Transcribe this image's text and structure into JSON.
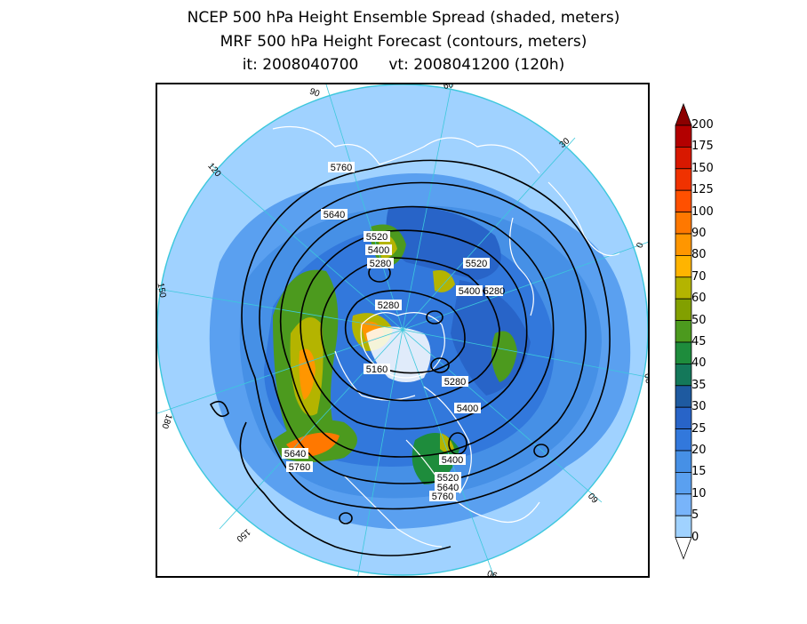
{
  "titles": {
    "line1": "NCEP 500 hPa Height Ensemble Spread (shaded, meters)",
    "line2": "MRF 500 hPa Height Forecast (contours, meters)",
    "init_time": "it: 2008040700",
    "valid_time": "vt: 2008041200 (120h)"
  },
  "colorbar": {
    "levels": [
      "200",
      "175",
      "150",
      "125",
      "100",
      "90",
      "80",
      "70",
      "60",
      "50",
      "45",
      "40",
      "35",
      "30",
      "25",
      "20",
      "15",
      "10",
      "5",
      "0"
    ],
    "colors": [
      "#b30000",
      "#d81800",
      "#f03200",
      "#ff5000",
      "#ff7800",
      "#ff9600",
      "#ffb400",
      "#b4b400",
      "#82a000",
      "#4c9a1e",
      "#1e8c3c",
      "#14785a",
      "#1e5aa0",
      "#2864c8",
      "#3278dc",
      "#4690e6",
      "#5aa0f0",
      "#78b4fa",
      "#a0d2ff"
    ]
  },
  "longitude_labels": [
    "60",
    "30",
    "0",
    "30",
    "60",
    "90",
    "120",
    "150",
    "180",
    "150",
    "120",
    "90"
  ],
  "contour_labels": [
    "5760",
    "5640",
    "5520",
    "5400",
    "5280",
    "5520",
    "5400",
    "5280",
    "5160",
    "5280",
    "5400",
    "5640",
    "5760",
    "5400",
    "5520",
    "5640",
    "5760",
    "5280"
  ],
  "map_colors": {
    "outer_ring": "#3cc8dc",
    "base_fill": "#a0d2ff",
    "coastline": "#ffffff",
    "contour": "#000000",
    "graticule": "#3cc8dc"
  }
}
